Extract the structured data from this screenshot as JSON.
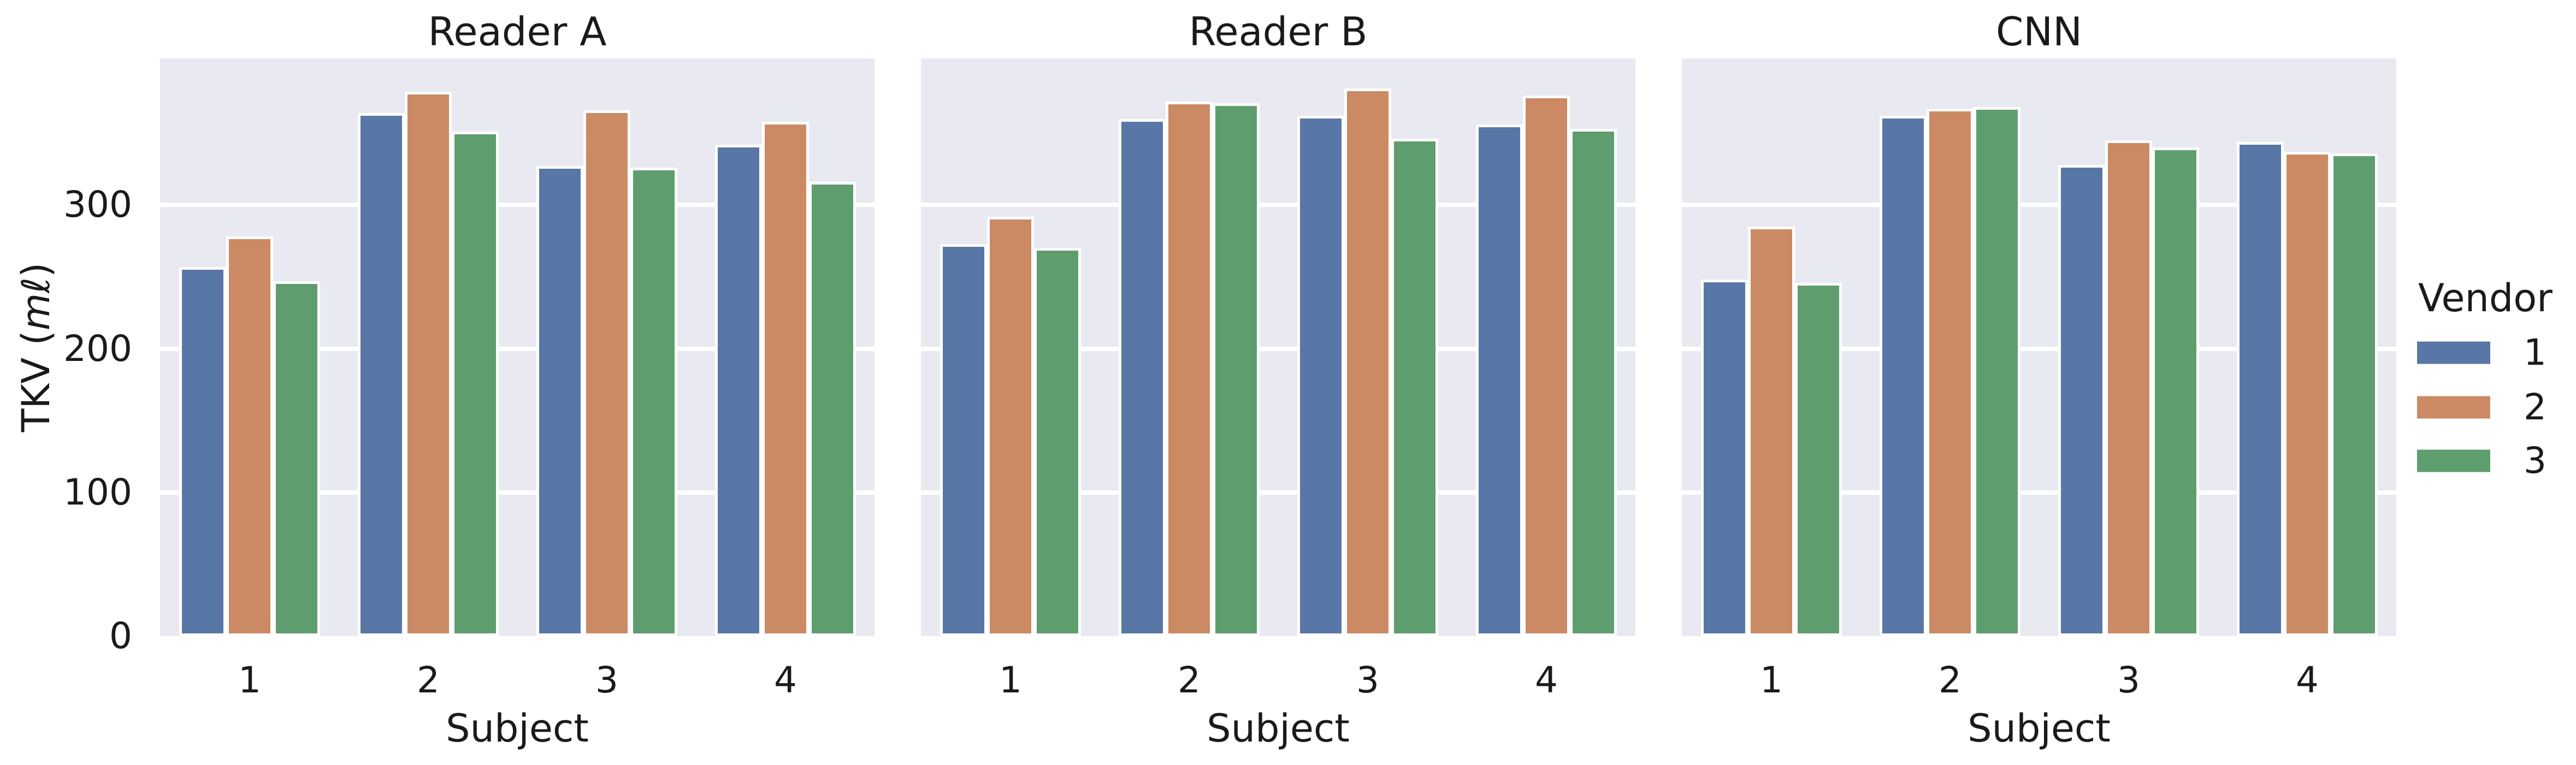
{
  "figure": {
    "background": "#ffffff",
    "panel_background": "#e9e9f1",
    "grid_color": "#ffffff",
    "text_color": "#1a1a1a"
  },
  "chart_data": {
    "type": "bar",
    "title": "",
    "categories": [
      "1",
      "2",
      "3",
      "4"
    ],
    "xlabel": "Subject",
    "ylabel": "TKV (mℓ)",
    "ylabel_parts": {
      "prefix": "TKV (",
      "italic": "mℓ",
      "suffix": ")"
    },
    "yticks": [
      0,
      100,
      200,
      300
    ],
    "ylim": [
      0,
      402
    ],
    "grid": true,
    "legend_position": "right-outside",
    "legend": {
      "title": "Vendor",
      "entries": [
        {
          "label": "1",
          "color": "#5877A7"
        },
        {
          "label": "2",
          "color": "#CB8A63"
        },
        {
          "label": "3",
          "color": "#5E9E6E"
        }
      ]
    },
    "panels": [
      {
        "title": "Reader A",
        "series": [
          {
            "name": "1",
            "values": [
              257,
              364,
              327,
              342
            ]
          },
          {
            "name": "2",
            "values": [
              278,
              379,
              366,
              358
            ]
          },
          {
            "name": "3",
            "values": [
              247,
              351,
              326,
              316
            ]
          }
        ]
      },
      {
        "title": "Reader B",
        "series": [
          {
            "name": "1",
            "values": [
              273,
              360,
              362,
              356
            ]
          },
          {
            "name": "2",
            "values": [
              292,
              372,
              381,
              376
            ]
          },
          {
            "name": "3",
            "values": [
              270,
              371,
              346,
              353
            ]
          }
        ]
      },
      {
        "title": "CNN",
        "series": [
          {
            "name": "1",
            "values": [
              248,
              362,
              328,
              344
            ]
          },
          {
            "name": "2",
            "values": [
              285,
              367,
              345,
              337
            ]
          },
          {
            "name": "3",
            "values": [
              246,
              368,
              340,
              336
            ]
          }
        ]
      }
    ]
  }
}
